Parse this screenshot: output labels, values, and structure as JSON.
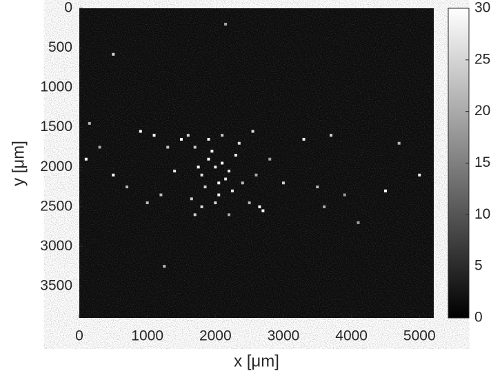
{
  "chart_data": {
    "type": "heatmap",
    "xlabel": "x [μm]",
    "ylabel": "y [μm]",
    "xlim": [
      0,
      5210
    ],
    "ylim": [
      0,
      3900
    ],
    "y_reversed": true,
    "xticks": [
      0,
      1000,
      2000,
      3000,
      4000,
      5000
    ],
    "yticks": [
      0,
      500,
      1000,
      1500,
      2000,
      2500,
      3000,
      3500
    ],
    "colormap": "gray",
    "clim": [
      0,
      30
    ],
    "cticks": [
      0,
      5,
      10,
      15,
      20,
      25,
      30
    ],
    "x": [
      1900,
      2000,
      2100,
      1800,
      2200,
      1950,
      2050,
      1700,
      2300,
      1850,
      2150,
      1750,
      2250,
      1600,
      2400,
      1650,
      2350,
      1500,
      2500,
      1400,
      2600,
      1300,
      2700,
      1200,
      2800,
      1100,
      900,
      700,
      500,
      300,
      150,
      100,
      2000,
      1900,
      2100,
      1800,
      2200,
      3300,
      3500,
      3700,
      3900,
      4500,
      4700,
      5000,
      2650,
      3000,
      1250,
      2150,
      500,
      2050,
      1000,
      1700,
      2550,
      4100,
      3600
    ],
    "y": [
      1900,
      2000,
      1950,
      2100,
      2050,
      1800,
      2200,
      1750,
      1850,
      2250,
      2150,
      2000,
      2300,
      1600,
      2200,
      2400,
      1700,
      1650,
      2450,
      2050,
      2100,
      1750,
      2550,
      2350,
      1900,
      1600,
      1550,
      2250,
      2100,
      1750,
      1450,
      1900,
      2450,
      1650,
      1600,
      2500,
      2600,
      1650,
      2250,
      1600,
      2350,
      2300,
      1700,
      2100,
      2500,
      2200,
      3250,
      200,
      580,
      2350,
      2450,
      2600,
      1550,
      2700,
      2500
    ],
    "values": [
      30,
      28,
      30,
      26,
      27,
      30,
      29,
      24,
      28,
      25,
      26,
      30,
      27,
      25,
      22,
      24,
      26,
      30,
      21,
      27,
      20,
      23,
      30,
      22,
      19,
      30,
      30,
      22,
      30,
      20,
      21,
      30,
      25,
      28,
      24,
      26,
      20,
      28,
      22,
      25,
      18,
      30,
      22,
      28,
      30,
      24,
      22,
      20,
      25,
      28,
      22,
      24,
      26,
      19,
      21
    ]
  }
}
